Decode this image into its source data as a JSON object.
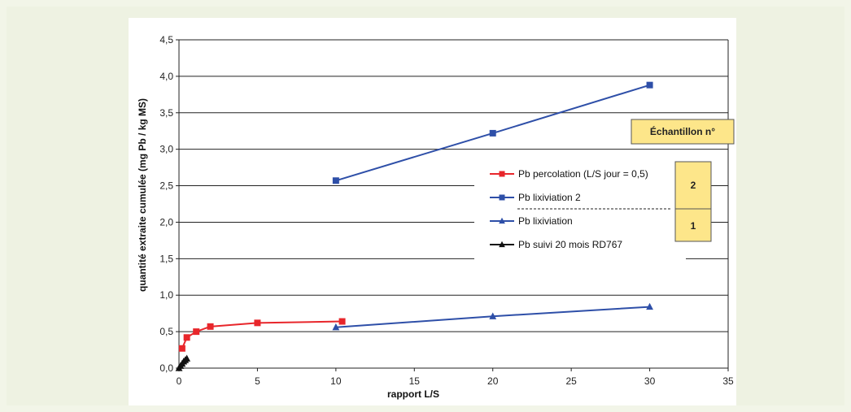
{
  "chart_data": {
    "type": "line",
    "xlabel": "rapport L/S",
    "ylabel": "quantité extraite cumulée (mg Pb / kg MS)",
    "xlim": [
      0,
      35
    ],
    "ylim": [
      0,
      4.5
    ],
    "x_ticks": [
      "0",
      "5",
      "10",
      "15",
      "20",
      "25",
      "30",
      "35"
    ],
    "y_ticks": [
      "0,0",
      "0,5",
      "1,0",
      "1,5",
      "2,0",
      "2,5",
      "3,0",
      "3,5",
      "4,0",
      "4,5"
    ],
    "grid": "horizontal",
    "legend_position": "right",
    "series": [
      {
        "name": "Pb percolation (L/S jour = 0,5)",
        "color": "#e8262b",
        "marker": "square",
        "points": [
          [
            0.2,
            0.27
          ],
          [
            0.5,
            0.42
          ],
          [
            1.1,
            0.5
          ],
          [
            2.0,
            0.57
          ],
          [
            5.0,
            0.62
          ],
          [
            10.4,
            0.64
          ]
        ]
      },
      {
        "name": "Pb lixiviation 2",
        "color": "#2e4fa8",
        "marker": "square",
        "points": [
          [
            10,
            2.57
          ],
          [
            20,
            3.22
          ],
          [
            30,
            3.88
          ]
        ]
      },
      {
        "name": "Pb lixiviation",
        "color": "#2e4fa8",
        "marker": "triangle",
        "points": [
          [
            10,
            0.56
          ],
          [
            20,
            0.71
          ],
          [
            30,
            0.84
          ]
        ]
      },
      {
        "name": "Pb suivi 20 mois RD767",
        "color": "#111111",
        "marker": "triangle",
        "points": [
          [
            0.0,
            0.0
          ],
          [
            0.1,
            0.03
          ],
          [
            0.2,
            0.06
          ],
          [
            0.3,
            0.09
          ],
          [
            0.4,
            0.11
          ],
          [
            0.5,
            0.13
          ]
        ]
      }
    ],
    "annotation": {
      "title": "Échantillon n°",
      "labels": [
        "2",
        "1"
      ],
      "fill": "#fde68a"
    }
  }
}
